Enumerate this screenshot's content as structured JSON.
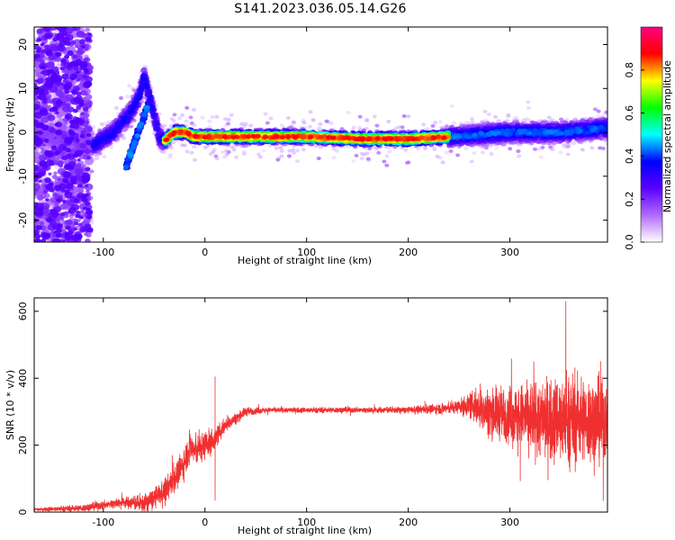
{
  "title": "S141.2023.036.05.14.G26",
  "chart_data": [
    {
      "type": "heatmap",
      "xlabel": "Height of straight line (km)",
      "ylabel": "Frequency (Hz)",
      "xlim": [
        -168,
        396
      ],
      "ylim": [
        -25,
        24
      ],
      "xticks": [
        -100,
        0,
        100,
        200,
        300
      ],
      "yticks": [
        -20,
        -10,
        0,
        10,
        20
      ],
      "ridge": {
        "x": [
          -168,
          -110,
          -90,
          -75,
          -65,
          -60,
          -50,
          -45,
          -40,
          -30,
          -20,
          -10,
          0,
          50,
          100,
          150,
          200,
          240,
          300,
          350,
          396
        ],
        "frequency": [
          0,
          -3,
          0,
          4,
          8,
          13,
          4,
          -1,
          -2,
          0,
          0,
          -1,
          -1,
          -1,
          -1,
          -1.5,
          -1.5,
          -1,
          0,
          0,
          1
        ]
      },
      "colorbar": {
        "label": "Normalized spectral amplitude",
        "range": [
          0,
          1
        ],
        "ticks": [
          0.0,
          0.2,
          0.4,
          0.6,
          0.8
        ],
        "colors": [
          "#ffffff",
          "#b06bff",
          "#5a00ff",
          "#0000ff",
          "#00ffff",
          "#00ff00",
          "#ffff00",
          "#ff0000",
          "#ff0080"
        ]
      }
    },
    {
      "type": "line",
      "xlabel": "Height of straight line (km)",
      "ylabel": "SNR (10 * v/v)",
      "xlim": [
        -168,
        396
      ],
      "ylim": [
        0,
        640
      ],
      "xticks": [
        -100,
        0,
        100,
        200,
        300
      ],
      "yticks": [
        0,
        200,
        400,
        600
      ],
      "color": "#f03030",
      "trend": {
        "x": [
          -168,
          -120,
          -80,
          -60,
          -40,
          -30,
          -20,
          -15,
          -10,
          0,
          10,
          20,
          40,
          60,
          100,
          150,
          200,
          240,
          260,
          280,
          300,
          330,
          360,
          396
        ],
        "snr": [
          8,
          12,
          30,
          25,
          60,
          100,
          150,
          200,
          180,
          200,
          220,
          260,
          300,
          305,
          305,
          305,
          305,
          310,
          320,
          300,
          290,
          280,
          280,
          270
        ]
      },
      "noise_amplitude": {
        "x": [
          -168,
          -80,
          -40,
          -20,
          0,
          20,
          60,
          200,
          250,
          280,
          300,
          330,
          360,
          396
        ],
        "amp": [
          6,
          20,
          45,
          60,
          55,
          25,
          10,
          12,
          25,
          90,
          110,
          150,
          170,
          160
        ]
      },
      "spikes": [
        {
          "x": 10,
          "snr": 405
        },
        {
          "x": 10,
          "snr": 35
        },
        {
          "x": 355,
          "snr": 630
        }
      ]
    }
  ]
}
